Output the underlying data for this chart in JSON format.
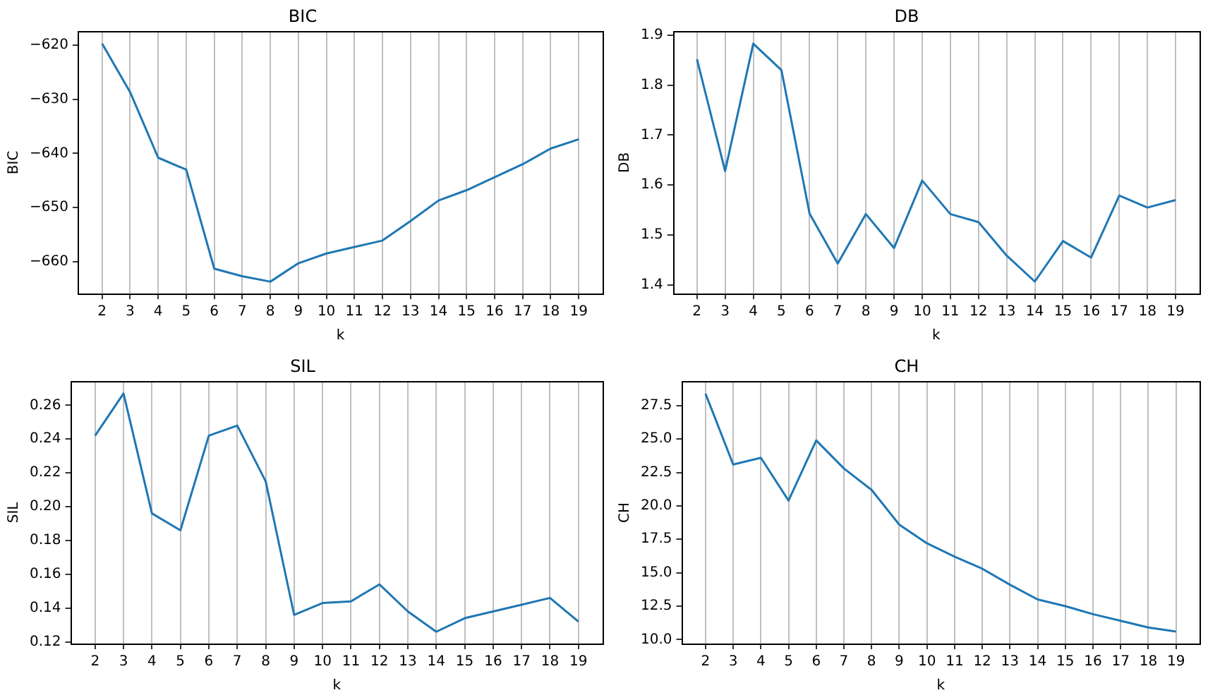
{
  "chart_data": [
    {
      "type": "line",
      "title": "BIC",
      "xlabel": "k",
      "ylabel": "BIC",
      "x": [
        2,
        3,
        4,
        5,
        6,
        7,
        8,
        9,
        10,
        11,
        12,
        13,
        14,
        15,
        16,
        17,
        18,
        19
      ],
      "series": [
        {
          "color": "#1f77b4",
          "values": [
            -619.7,
            -628.7,
            -640.8,
            -643.0,
            -661.3,
            -662.7,
            -663.7,
            -660.3,
            -658.5,
            -657.3,
            -656.1,
            -652.5,
            -648.7,
            -646.8,
            -644.4,
            -642.0,
            -639.1,
            -637.4
          ]
        }
      ],
      "xlim": [
        1.15,
        19.85
      ],
      "xticks": [
        2,
        3,
        4,
        5,
        6,
        7,
        8,
        9,
        10,
        11,
        12,
        13,
        14,
        15,
        16,
        17,
        18,
        19
      ],
      "ylim": [
        -665.9,
        -617.5
      ],
      "yticks": [
        {
          "value": -660,
          "label": "−660"
        },
        {
          "value": -650,
          "label": "−650"
        },
        {
          "value": -640,
          "label": "−640"
        },
        {
          "value": -630,
          "label": "−630"
        },
        {
          "value": -620,
          "label": "−620"
        }
      ],
      "grid": "x"
    },
    {
      "type": "line",
      "title": "DB",
      "xlabel": "k",
      "ylabel": "DB",
      "x": [
        2,
        3,
        4,
        5,
        6,
        7,
        8,
        9,
        10,
        11,
        12,
        13,
        14,
        15,
        16,
        17,
        18,
        19
      ],
      "series": [
        {
          "color": "#1f77b4",
          "values": [
            1.852,
            1.628,
            1.883,
            1.83,
            1.543,
            1.443,
            1.542,
            1.474,
            1.609,
            1.542,
            1.526,
            1.459,
            1.407,
            1.488,
            1.455,
            1.579,
            1.555,
            1.57
          ]
        }
      ],
      "xlim": [
        1.15,
        19.85
      ],
      "xticks": [
        2,
        3,
        4,
        5,
        6,
        7,
        8,
        9,
        10,
        11,
        12,
        13,
        14,
        15,
        16,
        17,
        18,
        19
      ],
      "ylim": [
        1.383,
        1.907
      ],
      "yticks": [
        1.4,
        1.5,
        1.6,
        1.7,
        1.8,
        1.9
      ],
      "grid": "x"
    },
    {
      "type": "line",
      "title": "SIL",
      "xlabel": "k",
      "ylabel": "SIL",
      "x": [
        2,
        3,
        4,
        5,
        6,
        7,
        8,
        9,
        10,
        11,
        12,
        13,
        14,
        15,
        16,
        17,
        18,
        19
      ],
      "series": [
        {
          "color": "#1f77b4",
          "values": [
            0.242,
            0.267,
            0.196,
            0.186,
            0.242,
            0.248,
            0.215,
            0.136,
            0.143,
            0.144,
            0.154,
            0.138,
            0.126,
            0.134,
            0.138,
            0.142,
            0.146,
            0.132
          ]
        }
      ],
      "xlim": [
        1.15,
        19.85
      ],
      "xticks": [
        2,
        3,
        4,
        5,
        6,
        7,
        8,
        9,
        10,
        11,
        12,
        13,
        14,
        15,
        16,
        17,
        18,
        19
      ],
      "ylim": [
        0.119,
        0.274
      ],
      "yticks": [
        0.12,
        0.14,
        0.16,
        0.18,
        {
          "value": 0.2,
          "label": "0.20"
        },
        0.22,
        0.24,
        0.26
      ],
      "grid": "x"
    },
    {
      "type": "line",
      "title": "CH",
      "xlabel": "k",
      "ylabel": "CH",
      "x": [
        2,
        3,
        4,
        5,
        6,
        7,
        8,
        9,
        10,
        11,
        12,
        13,
        14,
        15,
        16,
        17,
        18,
        19
      ],
      "series": [
        {
          "color": "#1f77b4",
          "values": [
            28.4,
            23.1,
            23.6,
            20.4,
            24.9,
            22.8,
            21.2,
            18.6,
            17.2,
            16.2,
            15.3,
            14.1,
            13.0,
            12.5,
            11.9,
            11.4,
            10.9,
            10.6
          ]
        }
      ],
      "xlim": [
        1.15,
        19.85
      ],
      "xticks": [
        2,
        3,
        4,
        5,
        6,
        7,
        8,
        9,
        10,
        11,
        12,
        13,
        14,
        15,
        16,
        17,
        18,
        19
      ],
      "ylim": [
        9.7,
        29.3
      ],
      "yticks": [
        {
          "value": 10,
          "label": "10.0"
        },
        12.5,
        {
          "value": 15,
          "label": "15.0"
        },
        17.5,
        {
          "value": 20,
          "label": "20.0"
        },
        22.5,
        {
          "value": 25,
          "label": "25.0"
        },
        27.5
      ],
      "grid": "x"
    }
  ]
}
